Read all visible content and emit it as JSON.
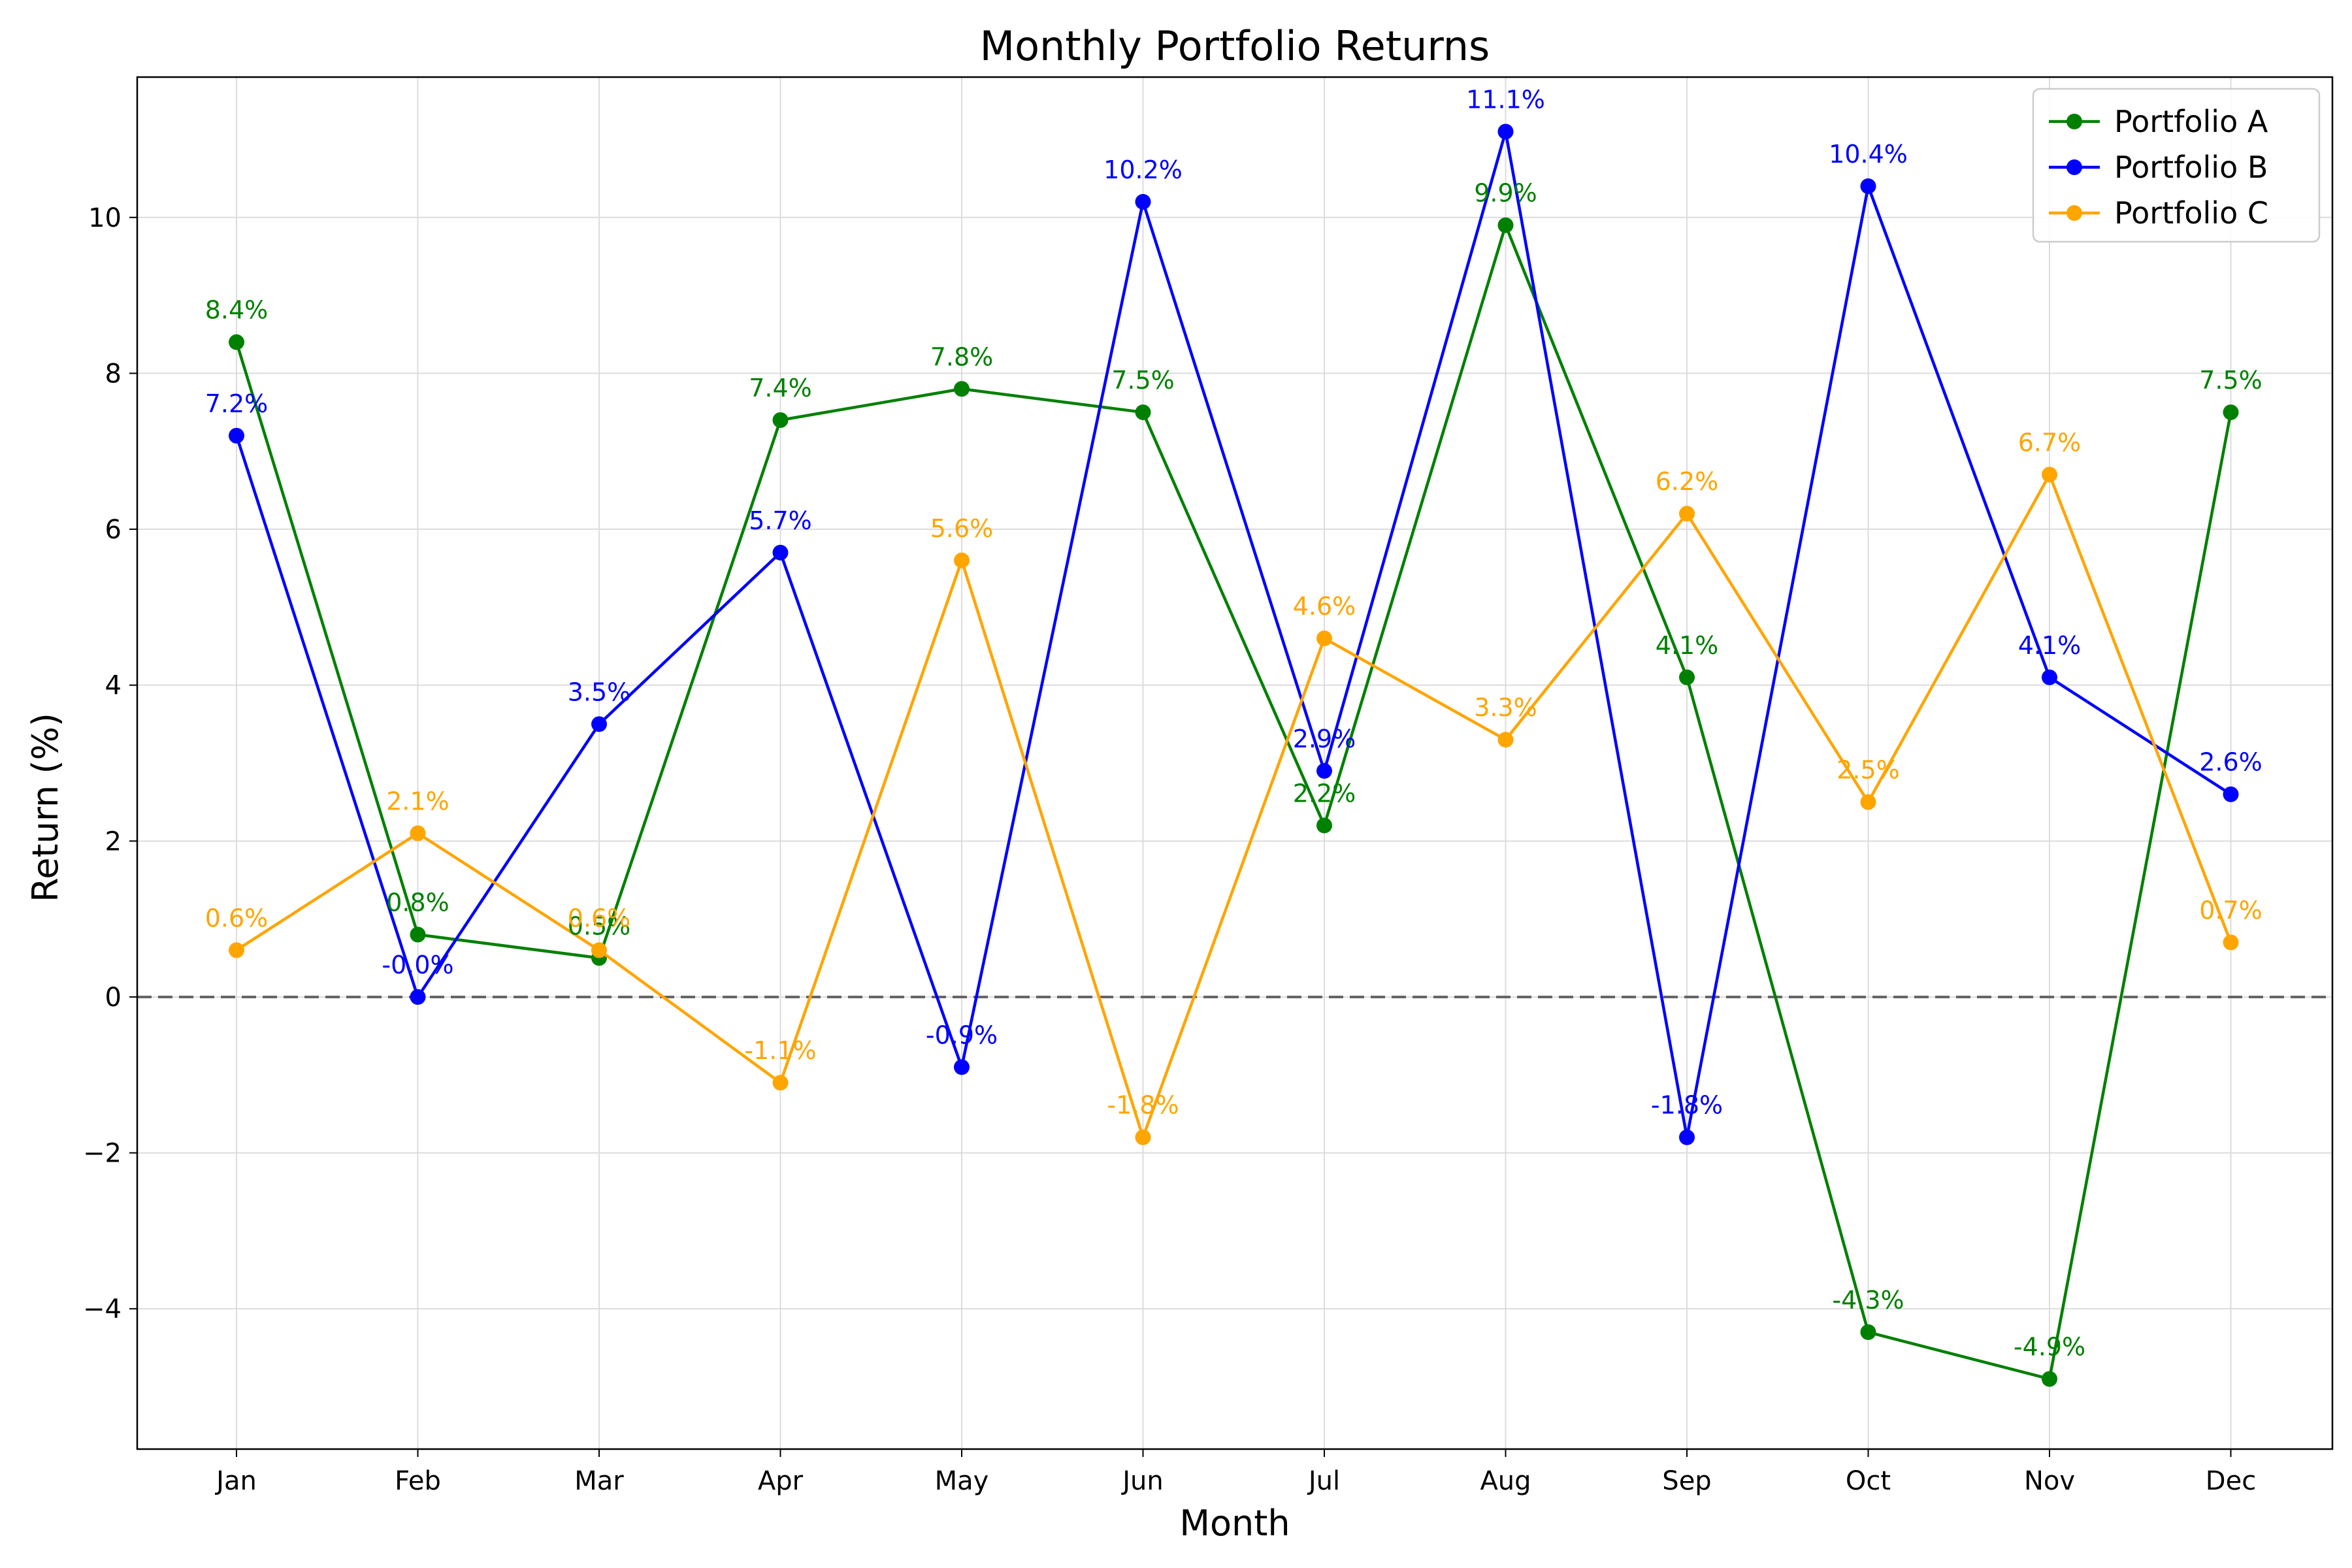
{
  "chart_data": {
    "type": "line",
    "title": "Monthly Portfolio Returns",
    "xlabel": "Month",
    "ylabel": "Return (%)",
    "categories": [
      "Jan",
      "Feb",
      "Mar",
      "Apr",
      "May",
      "Jun",
      "Jul",
      "Aug",
      "Sep",
      "Oct",
      "Nov",
      "Dec"
    ],
    "ylim": [
      -5.8,
      11.8
    ],
    "yticks": [
      -4,
      -2,
      0,
      2,
      4,
      6,
      8,
      10
    ],
    "ytick_labels": [
      "−4",
      "−2",
      "0",
      "2",
      "4",
      "6",
      "8",
      "10"
    ],
    "grid": true,
    "legend_position": "top-right",
    "reference_line": {
      "y": 0,
      "style": "dashed",
      "color": "#666666"
    },
    "series": [
      {
        "name": "Portfolio A",
        "color": "#008000",
        "values": [
          8.4,
          0.8,
          0.5,
          7.4,
          7.8,
          7.5,
          2.2,
          9.9,
          4.1,
          -4.3,
          -4.9,
          7.5
        ],
        "labels": [
          "8.4%",
          "0.8%",
          "0.5%",
          "7.4%",
          "7.8%",
          "7.5%",
          "2.2%",
          "9.9%",
          "4.1%",
          "-4.3%",
          "-4.9%",
          "7.5%"
        ]
      },
      {
        "name": "Portfolio B",
        "color": "#0000ff",
        "values": [
          7.2,
          0.0,
          3.5,
          5.7,
          -0.9,
          10.2,
          2.9,
          11.1,
          -1.8,
          10.4,
          4.1,
          2.6
        ],
        "labels": [
          "7.2%",
          "-0.0%",
          "3.5%",
          "5.7%",
          "-0.9%",
          "10.2%",
          "2.9%",
          "11.1%",
          "-1.8%",
          "10.4%",
          "4.1%",
          "2.6%"
        ]
      },
      {
        "name": "Portfolio C",
        "color": "#ffa500",
        "values": [
          0.6,
          2.1,
          0.6,
          -1.1,
          5.6,
          -1.8,
          4.6,
          3.3,
          6.2,
          2.5,
          6.7,
          0.7
        ],
        "labels": [
          "0.6%",
          "2.1%",
          "0.6%",
          "-1.1%",
          "5.6%",
          "-1.8%",
          "4.6%",
          "3.3%",
          "6.2%",
          "2.5%",
          "6.7%",
          "0.7%"
        ]
      }
    ]
  }
}
